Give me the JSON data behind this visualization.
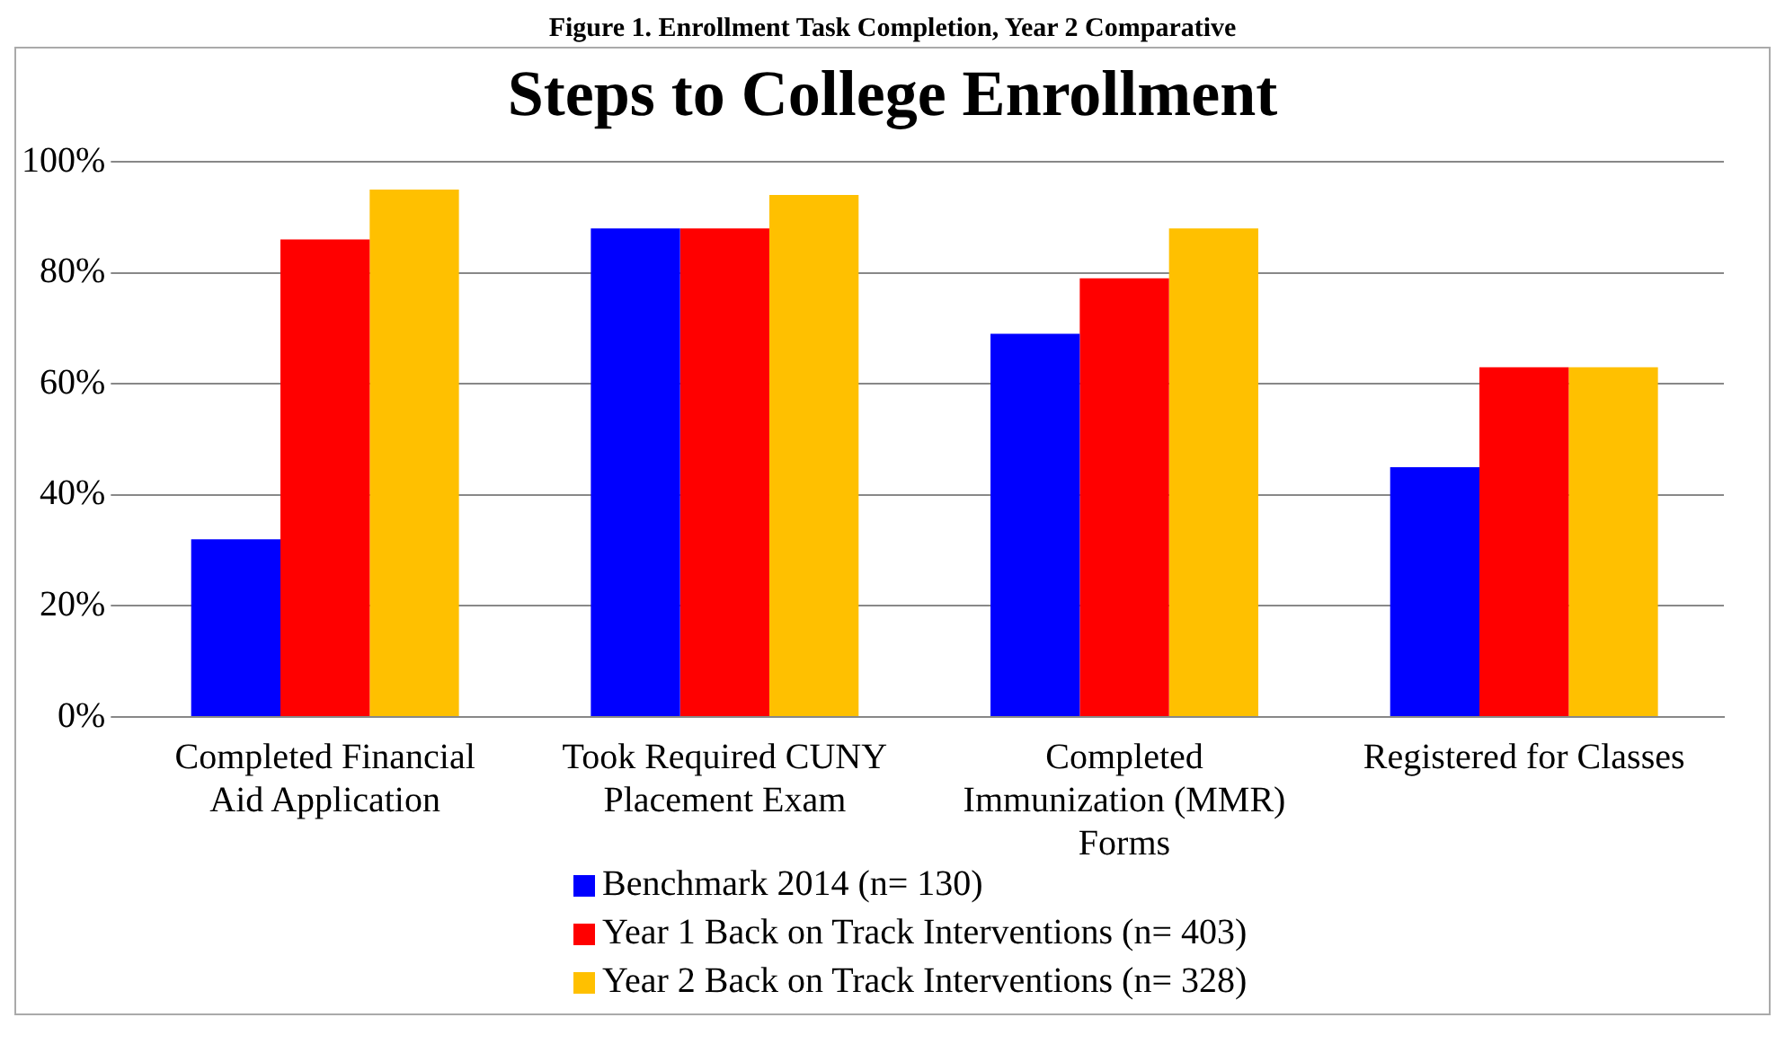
{
  "chart_data": {
    "type": "bar",
    "title": "Steps to College Enrollment",
    "annotations": [
      "Figure 1. Enrollment Task Completion, Year 2 Comparative"
    ],
    "categories": [
      "Completed Financial Aid Application",
      "Took Required CUNY Placement Exam",
      "Completed Immunization (MMR) Forms",
      "Registered for Classes"
    ],
    "series": [
      {
        "name": "Benchmark 2014 (n= 130)",
        "color": "#0000ff",
        "values": [
          32,
          88,
          69,
          45
        ]
      },
      {
        "name": "Year 1 Back on Track Interventions (n= 403)",
        "color": "#ff0000",
        "values": [
          86,
          88,
          79,
          63
        ]
      },
      {
        "name": "Year 2 Back on Track Interventions (n= 328)",
        "color": "#ffc000",
        "values": [
          95,
          94,
          88,
          63
        ]
      }
    ],
    "ylim": [
      0,
      100
    ],
    "yticks": [
      {
        "value": 0,
        "label": "0%"
      },
      {
        "value": 20,
        "label": "20%"
      },
      {
        "value": 40,
        "label": "40%"
      },
      {
        "value": 60,
        "label": "60%"
      },
      {
        "value": 80,
        "label": "80%"
      },
      {
        "value": 100,
        "label": "100%"
      }
    ],
    "grid": "y",
    "legend": "bottom"
  }
}
